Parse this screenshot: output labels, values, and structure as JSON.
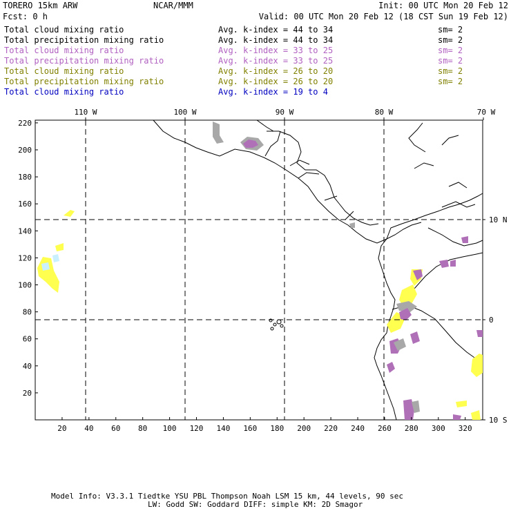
{
  "header": {
    "model": "TORERO  15km ARW",
    "center": "NCAR/MMM",
    "init": "Init: 00 UTC Mon 20 Feb 12",
    "fcst": "Fcst:    0 h",
    "valid": "Valid: 00 UTC Mon 20 Feb 12 (18 CST Sun 19 Feb 12)"
  },
  "legend": [
    {
      "name": "Total cloud mixing ratio",
      "avg": "Avg. k-index =  44 to  34",
      "sm": "sm= 2",
      "color": "#000000"
    },
    {
      "name": "Total precipitation mixing ratio",
      "avg": "Avg. k-index =  44 to  34",
      "sm": "sm= 2",
      "color": "#000000"
    },
    {
      "name": "Total cloud mixing ratio",
      "avg": "Avg. k-index =  33 to  25",
      "sm": "sm= 2",
      "color": "#b060c0"
    },
    {
      "name": "Total precipitation mixing ratio",
      "avg": "Avg. k-index =  33 to  25",
      "sm": "sm= 2",
      "color": "#b060c0"
    },
    {
      "name": "Total cloud mixing ratio",
      "avg": "Avg. k-index =  26 to  20",
      "sm": "sm= 2",
      "color": "#808000"
    },
    {
      "name": "Total precipitation mixing ratio",
      "avg": "Avg. k-index =  26 to  20",
      "sm": "sm= 2",
      "color": "#808000"
    },
    {
      "name": "Total cloud mixing ratio",
      "avg": "Avg. k-index =  19 to   4",
      "sm": "",
      "color": "#0000c0"
    }
  ],
  "map": {
    "lon_labels": [
      "110 W",
      "100 W",
      "90 W",
      "80 W",
      "70 W"
    ],
    "lat_labels": [
      "10 N",
      "0",
      "10 S"
    ],
    "x_ticks": [
      20,
      40,
      60,
      80,
      100,
      120,
      140,
      160,
      180,
      200,
      220,
      240,
      260,
      280,
      300,
      320
    ],
    "y_ticks": [
      20,
      40,
      60,
      80,
      100,
      120,
      140,
      160,
      180,
      200,
      220
    ],
    "colors": {
      "gray": "#a8a8a8",
      "purple": "#b070b8",
      "yellow": "#ffff50",
      "cyan": "#c8f0ff"
    }
  },
  "footer": {
    "line1": "Model Info: V3.3.1   Tiedtke YSU PBL  Thompson    Noah LSM  15 km,   44 levels,   90 sec",
    "line2": "LW: Godd SW: Goddard DIFF: simple KM: 2D Smagor"
  }
}
